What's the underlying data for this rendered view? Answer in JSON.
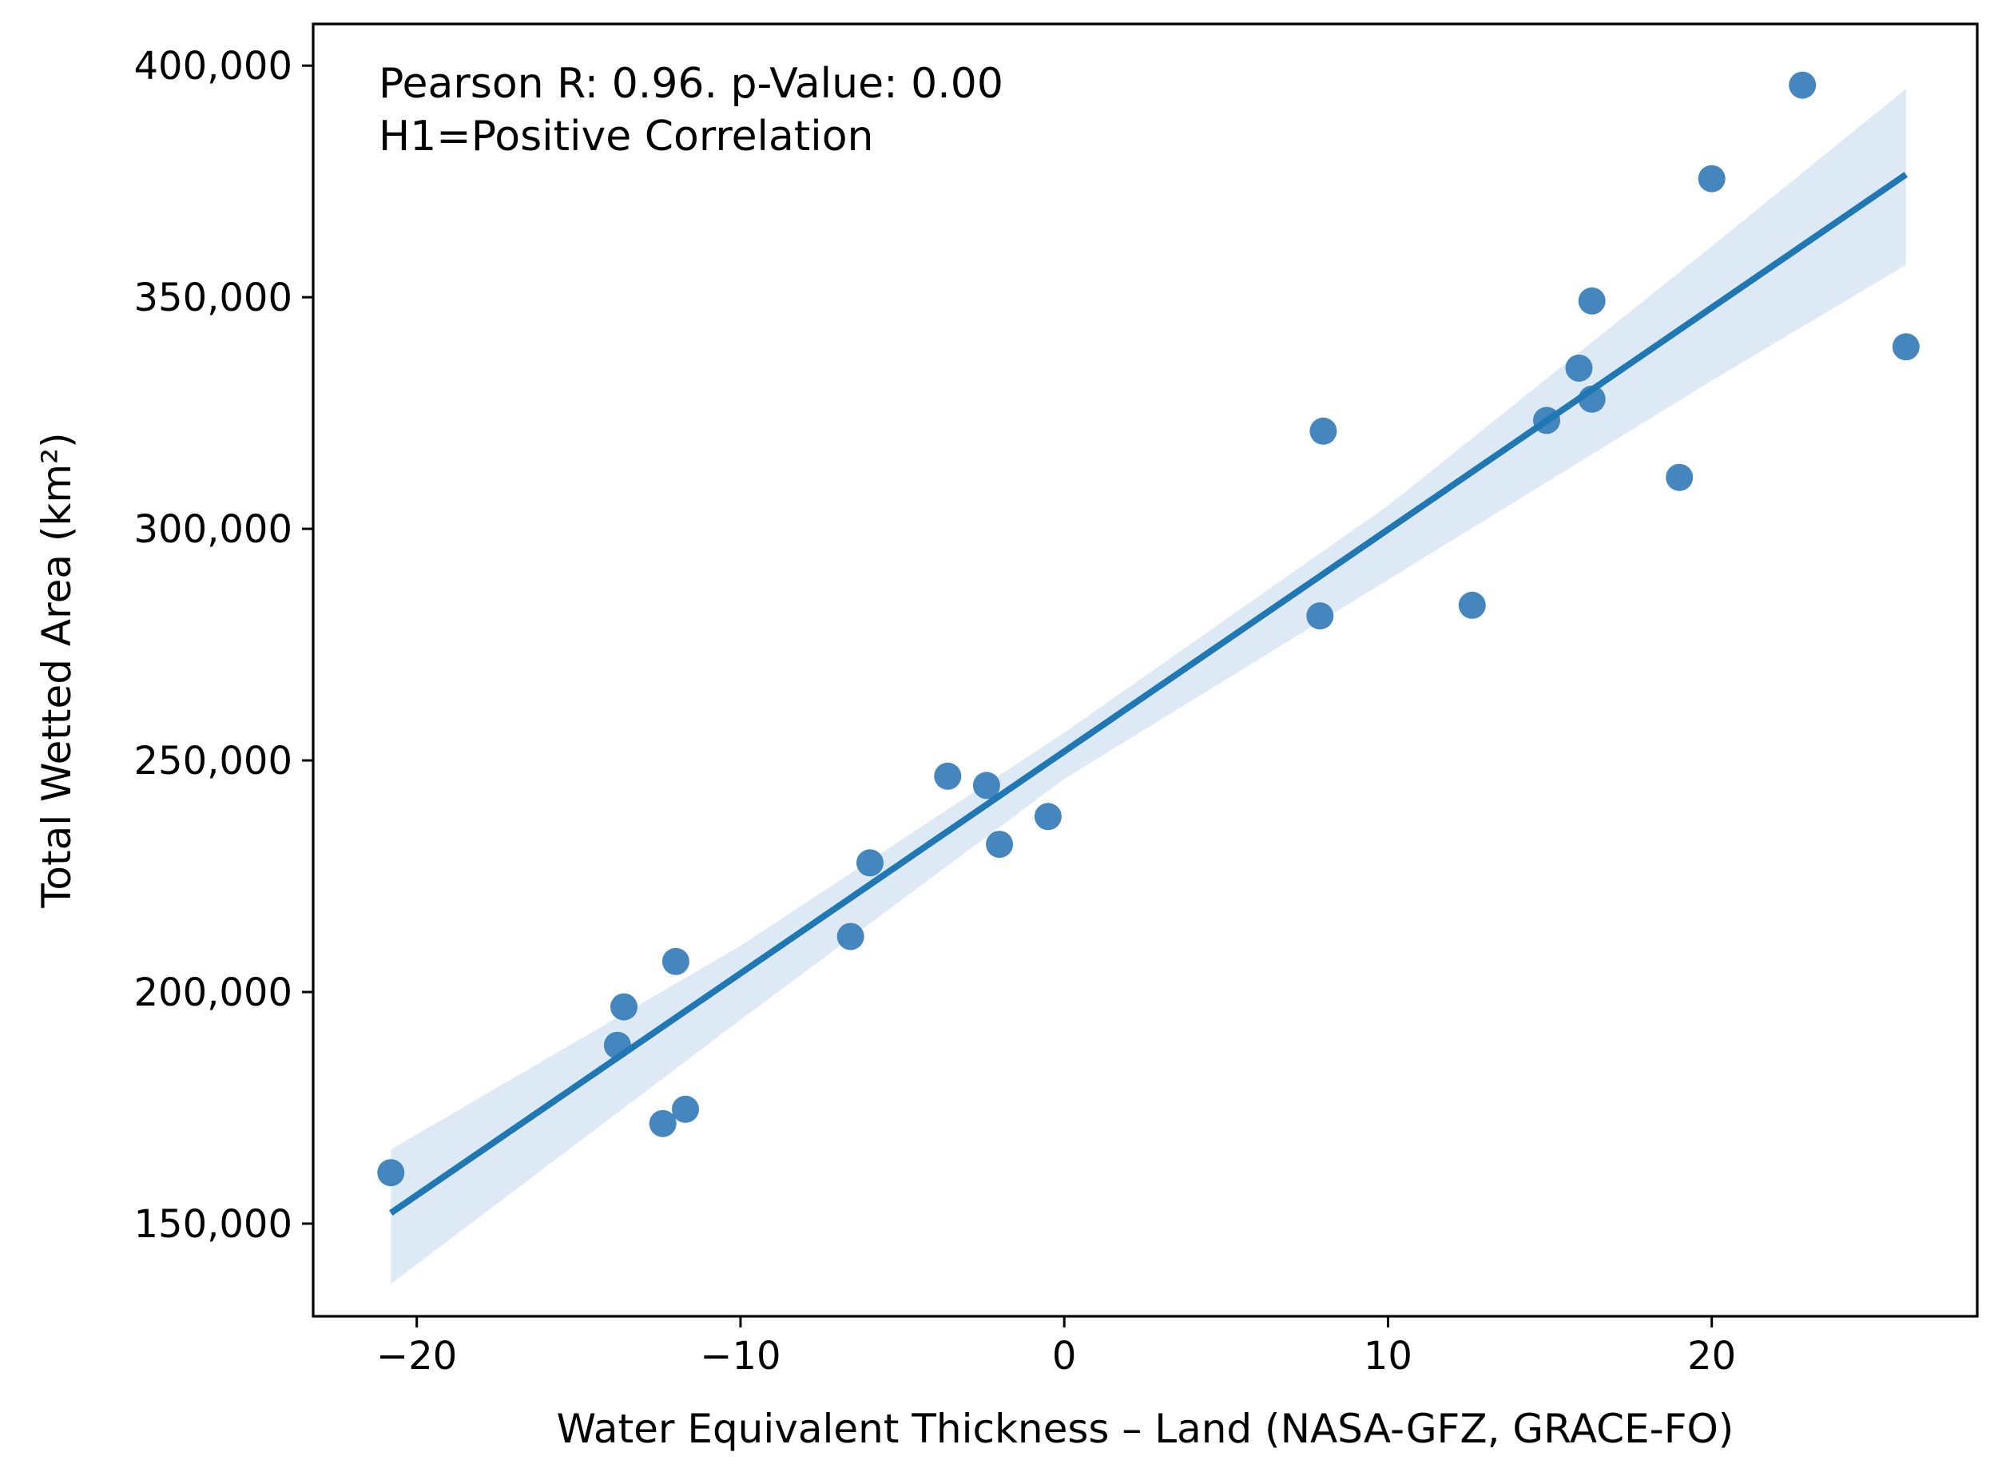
{
  "chart_data": {
    "type": "scatter",
    "title": "",
    "xlabel": "Water Equivalent Thickness – Land (NASA-GFZ, GRACE-FO)",
    "ylabel": "Total Wetted Area (km²)",
    "xlim": [
      -23.2,
      28.2
    ],
    "ylim": [
      130000,
      409000
    ],
    "x_ticks": [
      -20,
      -10,
      0,
      10,
      20
    ],
    "x_tick_labels": [
      "−20",
      "−10",
      "0",
      "10",
      "20"
    ],
    "y_ticks": [
      150000,
      200000,
      250000,
      300000,
      350000,
      400000
    ],
    "y_tick_labels": [
      "150,000",
      "200,000",
      "250,000",
      "300,000",
      "350,000",
      "400,000"
    ],
    "grid": false,
    "annotation": [
      "Pearson R: 0.96. p-Value: 0.00",
      "H1=Positive Correlation"
    ],
    "annotation_placement": "top-left",
    "points": [
      {
        "x": -20.8,
        "y": 161000
      },
      {
        "x": -13.8,
        "y": 188500
      },
      {
        "x": -13.6,
        "y": 196800
      },
      {
        "x": -12.4,
        "y": 171600
      },
      {
        "x": -12.0,
        "y": 206600
      },
      {
        "x": -11.7,
        "y": 174700
      },
      {
        "x": -6.6,
        "y": 212000
      },
      {
        "x": -6.0,
        "y": 227900
      },
      {
        "x": -3.6,
        "y": 246600
      },
      {
        "x": -2.4,
        "y": 244600
      },
      {
        "x": -2.0,
        "y": 231900
      },
      {
        "x": -0.5,
        "y": 237900
      },
      {
        "x": 7.9,
        "y": 281200
      },
      {
        "x": 8.0,
        "y": 321100
      },
      {
        "x": 12.6,
        "y": 283500
      },
      {
        "x": 14.9,
        "y": 323400
      },
      {
        "x": 15.9,
        "y": 334700
      },
      {
        "x": 16.3,
        "y": 349200
      },
      {
        "x": 16.3,
        "y": 328000
      },
      {
        "x": 19.0,
        "y": 311100
      },
      {
        "x": 20.0,
        "y": 375600
      },
      {
        "x": 22.8,
        "y": 395800
      },
      {
        "x": 26.0,
        "y": 339300
      }
    ],
    "regression": {
      "x": [
        -20.8,
        26.0
      ],
      "y": [
        152300,
        376500
      ]
    },
    "confidence_band": [
      {
        "x": -20.8,
        "lower": 137000,
        "upper": 166000
      },
      {
        "x": -10.0,
        "lower": 194000,
        "upper": 210000
      },
      {
        "x": 0.0,
        "lower": 246000,
        "upper": 256000
      },
      {
        "x": 10.0,
        "lower": 289000,
        "upper": 305000
      },
      {
        "x": 20.0,
        "lower": 332000,
        "upper": 361000
      },
      {
        "x": 26.0,
        "lower": 357000,
        "upper": 395000
      }
    ],
    "colors": {
      "points": "#3a80b9",
      "line": "#1f77b4",
      "band": "#dde9f4",
      "axes": "#000000"
    }
  }
}
